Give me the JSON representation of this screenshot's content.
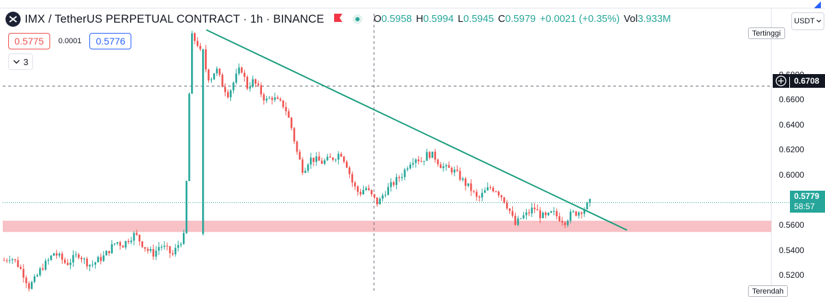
{
  "header": {
    "title": "IMX / TetherUS PERPETUAL CONTRACT · 1h · BINANCE",
    "ohlc": [
      {
        "key": "O",
        "value": "0.5958"
      },
      {
        "key": "H",
        "value": "0.5994"
      },
      {
        "key": "L",
        "value": "0.5945"
      },
      {
        "key": "C",
        "value": "0.5979"
      },
      {
        "key": "",
        "value": "+0.0021 (+0.35%)"
      },
      {
        "key": "Vol",
        "value": "3.933M"
      }
    ]
  },
  "trade": {
    "sell": "0.5775",
    "spread": "0.0001",
    "buy": "0.5776"
  },
  "indicators_toggle": {
    "count": "3"
  },
  "currency": "USDT",
  "price_axis": {
    "labels": [
      "0.6800",
      "0.6600",
      "0.6400",
      "0.6200",
      "0.6000",
      "0.5600",
      "0.5400",
      "0.5200"
    ],
    "high_badge": "Tertinggi",
    "low_badge": "Terendah",
    "crosshair_price": "0.6708",
    "last_price": "0.5779",
    "countdown": "58:57"
  },
  "colors": {
    "up": "#26a69a",
    "down": "#ef5350",
    "trendline": "#1a9e7e",
    "support_zone": "#f7b6bb",
    "accent": "#2962ff"
  },
  "chart_data": {
    "type": "candlestick",
    "ylim": [
      0.506,
      0.7175
    ],
    "support_zone": [
      0.5545,
      0.5635
    ],
    "trendline": {
      "from": [
        0,
        0.7156
      ],
      "to": [
        1,
        0.556
      ]
    },
    "crosshair_price": 0.6708,
    "last_price": 0.5779,
    "price_trace": [
      0.532,
      0.535,
      0.53,
      0.522,
      0.511,
      0.517,
      0.526,
      0.531,
      0.538,
      0.534,
      0.529,
      0.533,
      0.537,
      0.531,
      0.528,
      0.532,
      0.535,
      0.541,
      0.547,
      0.544,
      0.549,
      0.553,
      0.546,
      0.54,
      0.537,
      0.544,
      0.541,
      0.536,
      0.545,
      0.552,
      0.711,
      0.705,
      0.69,
      0.675,
      0.685,
      0.672,
      0.664,
      0.676,
      0.686,
      0.67,
      0.675,
      0.667,
      0.659,
      0.662,
      0.658,
      0.655,
      0.64,
      0.618,
      0.603,
      0.613,
      0.612,
      0.61,
      0.612,
      0.614,
      0.618,
      0.608,
      0.592,
      0.585,
      0.59,
      0.583,
      0.577,
      0.586,
      0.591,
      0.596,
      0.601,
      0.61,
      0.614,
      0.611,
      0.617,
      0.615,
      0.608,
      0.605,
      0.604,
      0.599,
      0.593,
      0.588,
      0.58,
      0.586,
      0.59,
      0.588,
      0.582,
      0.573,
      0.56,
      0.566,
      0.569,
      0.574,
      0.568,
      0.566,
      0.57,
      0.566,
      0.563,
      0.569,
      0.57,
      0.573,
      0.578
    ]
  }
}
